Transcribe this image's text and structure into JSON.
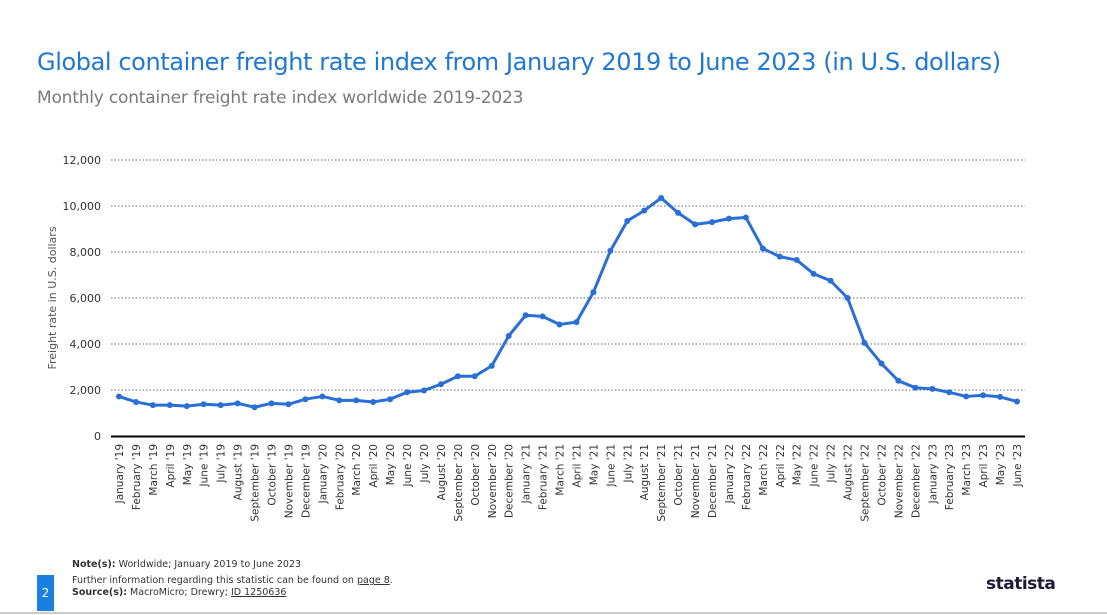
{
  "title": "Global container freight rate index from January 2019 to June 2023 (in U.S. dollars)",
  "subtitle": "Monthly container freight rate index worldwide 2019-2023",
  "footer": {
    "note_label": "Note(s):",
    "note": " Worldwide; January 2019 to June 2023",
    "further": "Further information regarding this statistic can be found on ",
    "further_link": "page 8",
    "further_end": ".",
    "source_label": "Source(s):",
    "source": " MacroMicro; Drewry; ",
    "source_link": "ID 1250636",
    "page_number": "2",
    "logo": "statista"
  },
  "colors": {
    "line": "#2a6fd6",
    "title": "#1f78d1"
  },
  "chart_data": {
    "type": "line",
    "title": "Global container freight rate index from January 2019 to June 2023 (in U.S. dollars)",
    "xlabel": "",
    "ylabel": "Freight rate in U.S. dollars",
    "ylim": [
      0,
      12000
    ],
    "yticks": [
      0,
      2000,
      4000,
      6000,
      8000,
      10000,
      12000
    ],
    "ytick_labels": [
      "0",
      "2,000",
      "4,000",
      "6,000",
      "8,000",
      "10,000",
      "12,000"
    ],
    "grid": true,
    "categories": [
      "January '19",
      "February '19",
      "March '19",
      "April '19",
      "May '19",
      "June '19",
      "July '19",
      "August '19",
      "September '19",
      "October '19",
      "November '19",
      "December '19",
      "January '20",
      "February '20",
      "March '20",
      "April '20",
      "May '20",
      "June '20",
      "July '20",
      "August '20",
      "September '20",
      "October '20",
      "November '20",
      "December '20",
      "January '21",
      "February '21",
      "March '21",
      "April '21",
      "May '21",
      "June '21",
      "July '21",
      "August '21",
      "September '21",
      "October '21",
      "November '21",
      "December '21",
      "January '22",
      "February '22",
      "March '22",
      "April '22",
      "May '22",
      "June '22",
      "July '22",
      "August '22",
      "September '22",
      "October '22",
      "November '22",
      "December '22",
      "January '23",
      "February '23",
      "March '23",
      "April '23",
      "May '23",
      "June '23"
    ],
    "series": [
      {
        "name": "Freight rate",
        "values": [
          1720,
          1480,
          1340,
          1340,
          1300,
          1380,
          1340,
          1420,
          1250,
          1420,
          1380,
          1600,
          1720,
          1550,
          1550,
          1480,
          1600,
          1900,
          1980,
          2250,
          2600,
          2600,
          3050,
          4350,
          5250,
          5200,
          4850,
          4950,
          6250,
          8050,
          9350,
          9800,
          10350,
          9700,
          9200,
          9300,
          9450,
          9500,
          8150,
          7800,
          7650,
          7050,
          6750,
          6000,
          4050,
          3150,
          2400,
          2100,
          2050,
          1900,
          1720,
          1770,
          1700,
          1500
        ]
      }
    ]
  }
}
